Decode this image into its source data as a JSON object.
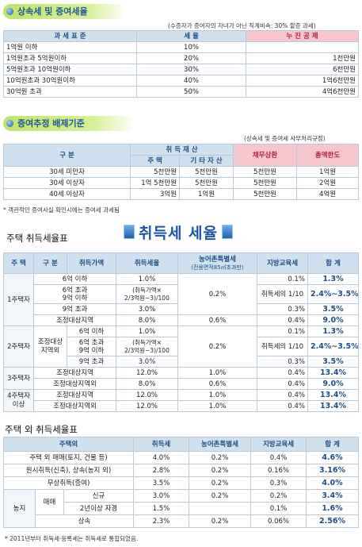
{
  "sec1": {
    "title": "상속세 및 증여세율",
    "note": "(수증자가 증여자의 자녀가 아닌 직계비속: 30% 할증 과세)",
    "headers": [
      "과 세 표 준",
      "세 율",
      "누 진 공 제"
    ],
    "rows": [
      [
        "1억원 이하",
        "10%",
        ""
      ],
      [
        "1억원초과 5억원이하",
        "20%",
        "1천만원"
      ],
      [
        "5억원초과 10억원이하",
        "30%",
        "6천만원"
      ],
      [
        "10억원초과 30억원이하",
        "40%",
        "1억6천만원"
      ],
      [
        "30억원 초과",
        "50%",
        "4억6천만원"
      ]
    ]
  },
  "sec2": {
    "title": "증여추정 배제기준",
    "note": "(상속세 및 증여세 사무처리규정)",
    "h_gubun": "구 분",
    "h_acq": "취 득 재 산",
    "h_house": "주 택",
    "h_other": "기 타 자 산",
    "h_debt": "채무상환",
    "h_total": "총액한도",
    "rows": [
      [
        "30세 미만자",
        "5천만원",
        "5천만원",
        "5천만원",
        "1억원"
      ],
      [
        "30세 이상자",
        "1억 5천만원",
        "5천만원",
        "5천만원",
        "2억원"
      ],
      [
        "40세 이상자",
        "3억원",
        "1억원",
        "5천만원",
        "4억원"
      ]
    ],
    "footnote": "* 객관적인 증여사실 확인시에는 증여세 과세됨"
  },
  "banner": "취득세 세율",
  "sec3": {
    "title": "주택 취득세율표",
    "headers": [
      "주 택",
      "구 분",
      "취득가액",
      "취득세율",
      "농어촌특별세",
      "(전용면적85㎡초과만)",
      "지방교육세",
      "합 계"
    ],
    "g1": "1주택자",
    "g2": "2주택자",
    "g2_sub": "조정대상\n지역외",
    "g2_sub1": "조정대상",
    "g2_sub2": "지역외",
    "g3": "3주택자",
    "g4a": "4주택자",
    "g4b": "이상",
    "r1": [
      "6억 이하",
      "1.0%",
      "",
      "0.1%",
      "1.3%"
    ],
    "r2_a": "6억 초과",
    "r2_b": "9억 이하",
    "r2_rate_a": "(취득가액×",
    "r2_rate_b": "2/3억원−3)/100",
    "special": "0.2%",
    "edu_special": "취득세의 1/10",
    "sum_special": "2.4%∼3.5%",
    "r3": [
      "9억 초과",
      "3.0%",
      "",
      "0.3%",
      "3.5%"
    ],
    "r4": [
      "조정대상지역",
      "8.0%",
      "0.6%",
      "0.4%",
      "9.0%"
    ],
    "r5": [
      "6억 이하",
      "1.0%",
      "",
      "0.1%",
      "1.3%"
    ],
    "r7": [
      "9억 초과",
      "3.0%",
      "",
      "0.3%",
      "3.5%"
    ],
    "r8": [
      "조정대상지역",
      "12.0%",
      "1.0%",
      "0.4%",
      "13.4%"
    ],
    "r9": [
      "조정대상지역외",
      "8.0%",
      "0.6%",
      "0.4%",
      "9.0%"
    ],
    "r10": [
      "조정대상지역",
      "12.0%",
      "1.0%",
      "0.4%",
      "13.4%"
    ],
    "r11": [
      "조정대상지역외",
      "12.0%",
      "1.0%",
      "0.4%",
      "13.4%"
    ]
  },
  "sec4": {
    "title": "주택 외 취득세율표",
    "headers": [
      "주택외",
      "취득세",
      "농어촌특별세",
      "지방교육세",
      "합 계"
    ],
    "rows": [
      [
        "주택 외 매매(토지, 건물 등)",
        "4.0%",
        "0.2%",
        "0.4%",
        "4.6%"
      ],
      [
        "원시취득(신축), 상속(농지 외)",
        "2.8%",
        "0.2%",
        "0.16%",
        "3.16%"
      ],
      [
        "무상취득(증여)",
        "3.5%",
        "0.2%",
        "0.3%",
        "4.0%"
      ]
    ],
    "farm": "농지",
    "trade": "매매",
    "farm_rows": [
      [
        "신규",
        "3.0%",
        "0.2%",
        "0.2%",
        "3.4%"
      ],
      [
        "2년이상 자경",
        "1.5%",
        "",
        "0.1%",
        "1.6%"
      ]
    ],
    "inherit": [
      "상속",
      "2.3%",
      "0.2%",
      "0.06%",
      "2.56%"
    ],
    "footnote": "* 2011년부터 취득세·등록세는 취득세로 통합되었음."
  }
}
